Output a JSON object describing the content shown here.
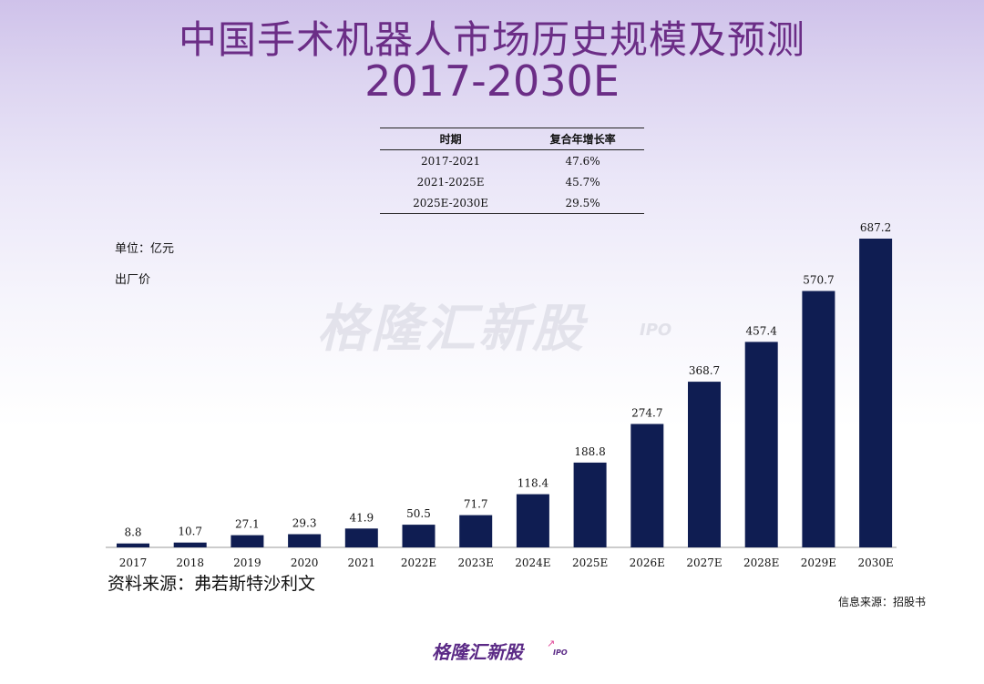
{
  "title": {
    "line1": "中国手术机器人市场历史规模及预测",
    "line2": "2017-2030E"
  },
  "cagr_table": {
    "headers": [
      "时期",
      "复合年增长率"
    ],
    "rows": [
      [
        "2017-2021",
        "47.6%"
      ],
      [
        "2021-2025E",
        "45.7%"
      ],
      [
        "2025E-2030E",
        "29.5%"
      ]
    ]
  },
  "unit_label": "单位：亿元",
  "price_label": "出厂价",
  "watermark": {
    "text": "格隆汇新股",
    "sub": "IPO"
  },
  "chart_data": {
    "type": "bar",
    "categories": [
      "2017",
      "2018",
      "2019",
      "2020",
      "2021",
      "2022E",
      "2023E",
      "2024E",
      "2025E",
      "2026E",
      "2027E",
      "2028E",
      "2029E",
      "2030E"
    ],
    "values": [
      8.8,
      10.7,
      27.1,
      29.3,
      41.9,
      50.5,
      71.7,
      118.4,
      188.8,
      274.7,
      368.7,
      457.4,
      570.7,
      687.2
    ],
    "value_labels": [
      "8.8",
      "10.7",
      "27.1",
      "29.3",
      "41.9",
      "50.5",
      "71.7",
      "118.4",
      "188.8",
      "274.7",
      "368.7",
      "457.4",
      "570.7",
      "687.2"
    ],
    "ylim": [
      0,
      687.2
    ],
    "bar_color": "#0f1d52"
  },
  "source": "资料来源：弗若斯特沙利文",
  "info_source": "信息来源：招股书",
  "brand": {
    "name": "格隆汇新股",
    "sub": "IPO"
  }
}
